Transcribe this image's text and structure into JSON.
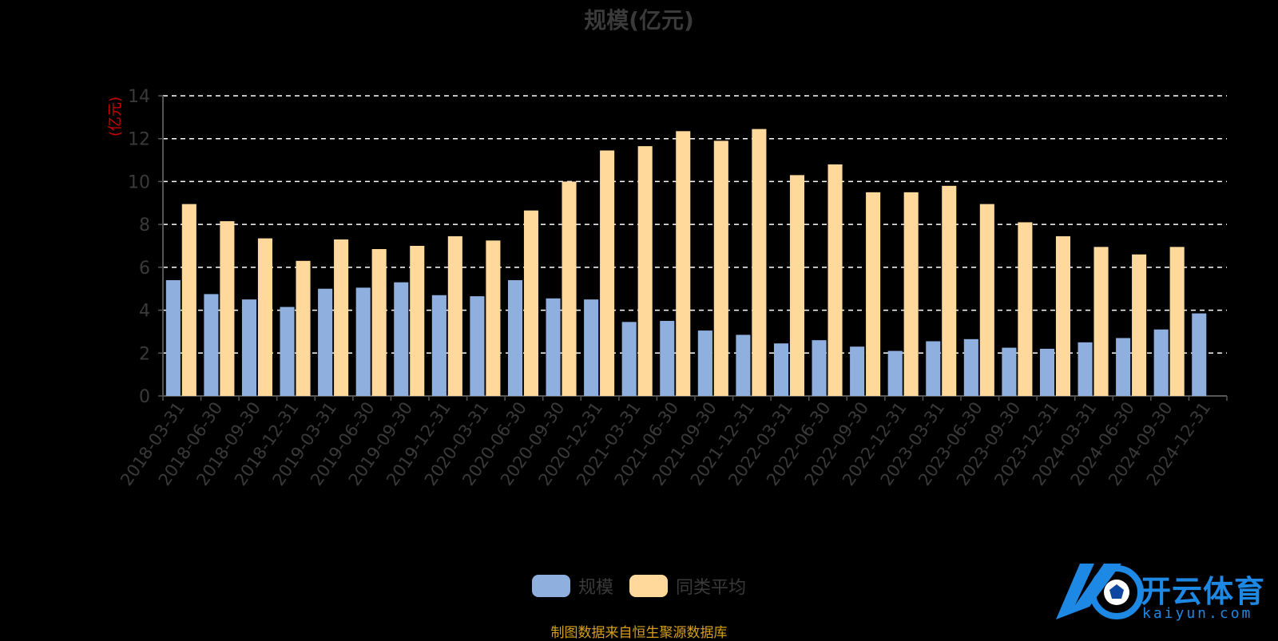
{
  "title": "规模(亿元)",
  "footer": "制图数据来自恒生聚源数据库",
  "watermark": {
    "name": "开云体育",
    "domain": "kaiyun.com"
  },
  "colors": {
    "series_1": "#8fb0de",
    "series_2": "#ffd89b",
    "grid": "#ffffff",
    "axis": "#555555",
    "tick_label": "#3a3a3a",
    "unit_label": "#cc0000"
  },
  "chart_data": {
    "type": "bar",
    "title": "规模(亿元)",
    "ylabel": "(亿元)",
    "xlabel": "",
    "ylim": [
      0,
      14
    ],
    "yticks": [
      0,
      2,
      4,
      6,
      8,
      10,
      12,
      14
    ],
    "grid": true,
    "legend_position": "bottom",
    "categories": [
      "2018-03-31",
      "2018-06-30",
      "2018-09-30",
      "2018-12-31",
      "2019-03-31",
      "2019-06-30",
      "2019-09-30",
      "2019-12-31",
      "2020-03-31",
      "2020-06-30",
      "2020-09-30",
      "2020-12-31",
      "2021-03-31",
      "2021-06-30",
      "2021-09-30",
      "2021-12-31",
      "2022-03-31",
      "2022-06-30",
      "2022-09-30",
      "2022-12-31",
      "2023-03-31",
      "2023-06-30",
      "2023-09-30",
      "2023-12-31",
      "2024-03-31",
      "2024-06-30",
      "2024-09-30",
      "2024-12-31"
    ],
    "series": [
      {
        "name": "规模",
        "values": [
          5.4,
          4.75,
          4.5,
          4.15,
          5.0,
          5.05,
          5.3,
          4.7,
          4.65,
          5.4,
          4.55,
          4.5,
          3.45,
          3.5,
          3.05,
          2.85,
          2.45,
          2.6,
          2.3,
          2.1,
          2.55,
          2.65,
          2.25,
          2.2,
          2.5,
          2.7,
          3.1,
          3.85
        ]
      },
      {
        "name": "同类平均",
        "values": [
          8.95,
          8.15,
          7.35,
          6.3,
          7.3,
          6.85,
          7.0,
          7.45,
          7.25,
          8.65,
          10.0,
          11.45,
          11.65,
          12.35,
          11.9,
          12.45,
          10.3,
          10.8,
          9.5,
          9.5,
          9.8,
          8.95,
          8.1,
          7.45,
          6.95,
          6.6,
          6.95,
          null
        ]
      }
    ]
  }
}
